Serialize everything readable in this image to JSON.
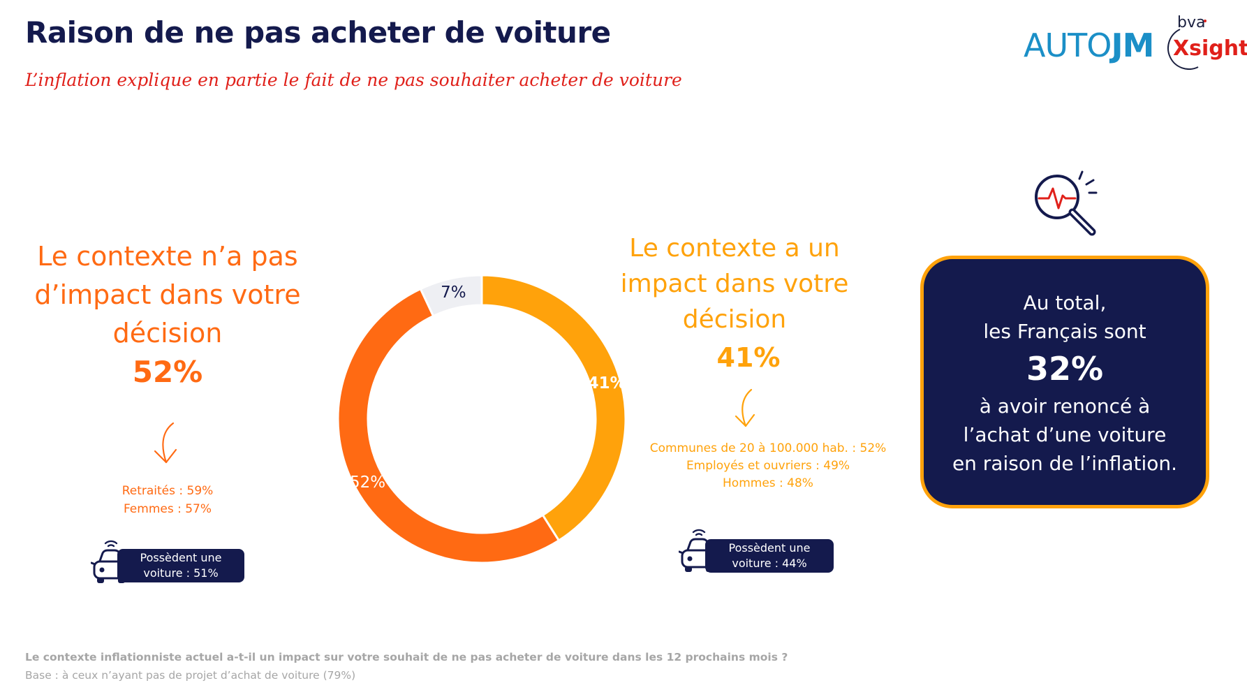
{
  "header": {
    "title": "Raison de ne pas acheter de voiture",
    "subtitle": "L’inflation explique en partie le fait de ne pas souhaiter acheter de voiture"
  },
  "logos": {
    "autojm_part1": "AUTO",
    "autojm_part2": "JM",
    "bva": "bva",
    "xsight": "Xsight"
  },
  "left": {
    "heading": [
      "Le contexte n’a pas",
      "d’impact dans votre",
      "décision"
    ],
    "percent": "52%",
    "details": [
      "Retraités : 59%",
      "Femmes : 57%"
    ],
    "car_pill": [
      "Possèdent une",
      "voiture : 51%"
    ]
  },
  "right": {
    "heading": [
      "Le contexte a un",
      "impact dans votre",
      "décision"
    ],
    "percent": "41%",
    "details": [
      "Communes de 20 à 100.000 hab. : 52%",
      "Employés et ouvriers : 49%",
      "Hommes : 48%"
    ],
    "car_pill": [
      "Possèdent une",
      "voiture : 44%"
    ]
  },
  "summary": {
    "line1": "Au total,",
    "line2": "les Français sont",
    "big": "32%",
    "line3": "à avoir renoncé à",
    "line4": "l’achat d’une voiture",
    "line5": "en raison de l’inflation."
  },
  "footer": {
    "question": "Le contexte inflationniste actuel a-t-il un impact sur votre souhait de ne pas acheter de voiture dans les 12 prochains mois ?",
    "base": "Base : à ceux n’ayant pas de projet d’achat de voiture (79%)"
  },
  "chart_data": {
    "type": "pie",
    "variant": "donut",
    "start": "top",
    "direction": "clockwise",
    "slices": [
      {
        "label": "41%",
        "value": 41,
        "color": "#ffa20b",
        "label_color": "#ffffff"
      },
      {
        "label": "52%",
        "value": 52,
        "color": "#ff6a13",
        "label_color": "#ffffff"
      },
      {
        "label": "7%",
        "value": 7,
        "color": "#eeeff3",
        "label_color": "#141a4d"
      }
    ]
  },
  "colors": {
    "navy": "#141a4d",
    "orange": "#ff6a13",
    "amber": "#ffa20b",
    "red": "#e0201a",
    "blue": "#1b8fc7"
  },
  "icons": [
    "search-pulse-icon",
    "car-icon",
    "arrow-down-icon"
  ]
}
